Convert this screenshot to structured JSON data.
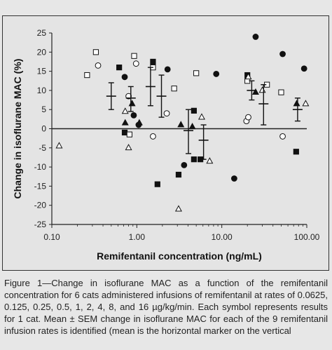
{
  "header_fragment": "",
  "chart_data": {
    "type": "scatter",
    "xscale": "log",
    "xlim": [
      0.1,
      100
    ],
    "ylim": [
      -25,
      25
    ],
    "xlabel": "Remifentanil concentration (ng/mL)",
    "ylabel": "Change in isoflurane MAC (%)",
    "xticks": [
      0.1,
      1,
      10,
      100
    ],
    "xtick_labels": [
      "0.10",
      "1.00",
      "10.00",
      "100.00"
    ],
    "yticks": [
      -25,
      -20,
      -15,
      -10,
      -5,
      0,
      5,
      10,
      15,
      20,
      25
    ],
    "ytick_labels": [
      "-25",
      "-20",
      "-15",
      "-10",
      "-5",
      "0",
      "5",
      "10",
      "15",
      "20",
      "25"
    ],
    "zero_line": true,
    "grid": false,
    "series": [
      {
        "marker": "filled-square",
        "points": [
          [
            0.62,
            16
          ],
          [
            0.72,
            -1
          ],
          [
            1.55,
            17.5
          ],
          [
            1.75,
            -14.5
          ],
          [
            3.1,
            -12
          ],
          [
            4.7,
            4.7
          ],
          [
            4.7,
            -8
          ],
          [
            5.6,
            -8
          ],
          [
            20,
            14
          ],
          [
            75,
            -6
          ]
        ]
      },
      {
        "marker": "filled-circle",
        "points": [
          [
            0.72,
            13.5
          ],
          [
            0.92,
            3.5
          ],
          [
            1.05,
            1
          ],
          [
            2.3,
            15.5
          ],
          [
            3.6,
            -9.5
          ],
          [
            8.6,
            14.3
          ],
          [
            14,
            -13
          ],
          [
            25,
            24
          ],
          [
            52,
            19.5
          ],
          [
            93,
            15.7
          ]
        ]
      },
      {
        "marker": "open-square",
        "points": [
          [
            0.26,
            14
          ],
          [
            0.33,
            20
          ],
          [
            0.82,
            -1.5
          ],
          [
            0.93,
            19
          ],
          [
            1.55,
            16
          ],
          [
            2.75,
            10.5
          ],
          [
            5.0,
            14.5
          ],
          [
            20,
            12.5
          ],
          [
            34,
            11.5
          ],
          [
            50,
            9.5
          ]
        ]
      },
      {
        "marker": "open-circle",
        "points": [
          [
            0.35,
            16.5
          ],
          [
            0.8,
            8.5
          ],
          [
            0.98,
            17
          ],
          [
            1.55,
            -2
          ],
          [
            2.25,
            4
          ],
          [
            19.5,
            2
          ],
          [
            20.5,
            3
          ],
          [
            52,
            -2
          ]
        ]
      },
      {
        "marker": "filled-triangle",
        "points": [
          [
            0.73,
            1.5
          ],
          [
            0.88,
            6.5
          ],
          [
            1.07,
            1.5
          ],
          [
            3.3,
            1
          ],
          [
            4.5,
            0.5
          ],
          [
            25,
            9.5
          ],
          [
            76,
            6.5
          ]
        ]
      },
      {
        "marker": "open-triangle",
        "points": [
          [
            0.122,
            -4.5
          ],
          [
            0.73,
            4.5
          ],
          [
            0.8,
            -5
          ],
          [
            3.1,
            -21
          ],
          [
            5.8,
            3
          ],
          [
            7.2,
            -8.5
          ],
          [
            20.5,
            13.5
          ],
          [
            30,
            10
          ],
          [
            97,
            6.5
          ]
        ]
      }
    ],
    "means": [
      {
        "x": 0.5,
        "mean": 8.5,
        "lo": 5,
        "hi": 12
      },
      {
        "x": 0.85,
        "mean": 8,
        "lo": 4.5,
        "hi": 11
      },
      {
        "x": 1.45,
        "mean": 11,
        "lo": 6,
        "hi": 16
      },
      {
        "x": 1.95,
        "mean": 8.5,
        "lo": 3,
        "hi": 14
      },
      {
        "x": 4.05,
        "mean": -0.5,
        "lo": -6.5,
        "hi": 5
      },
      {
        "x": 6.1,
        "mean": -3,
        "lo": -8,
        "hi": 1
      },
      {
        "x": 22.5,
        "mean": 10,
        "lo": 7.5,
        "hi": 12.5
      },
      {
        "x": 31,
        "mean": 6.5,
        "lo": 1,
        "hi": 11.5
      },
      {
        "x": 78,
        "mean": 5,
        "lo": 2,
        "hi": 8
      }
    ]
  },
  "caption": {
    "text": "Figure 1—Change in isoflurane MAC as a function of the remifentanil concentration for 6 cats administered infusions of remifentanil at rates of 0.0625, 0.125, 0.25, 0.5, 1, 2, 4, 8, and 16 µg/kg/min. Each symbol represents results for 1 cat. Mean ± SEM change in isoflurane MAC for each of the 9 remifentanil infusion rates is identified (mean is the horizontal marker on the vertical"
  }
}
